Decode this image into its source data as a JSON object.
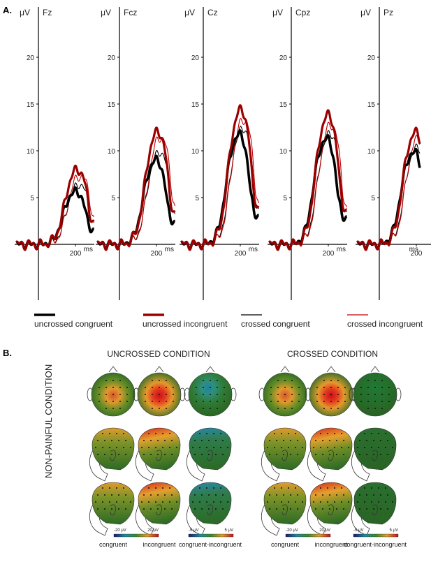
{
  "panel_a": {
    "label": "A.",
    "y_unit": "μV",
    "x_unit": "ms",
    "x_tick": "200",
    "y_ticks": [
      "5",
      "10",
      "15",
      "20"
    ],
    "channels": [
      "Fz",
      "Fcz",
      "Cz",
      "Cpz",
      "Pz"
    ]
  },
  "legend": [
    {
      "label": "uncrossed congruent",
      "color": "#000000",
      "style": "thick"
    },
    {
      "label": "uncrossed incongruent",
      "color": "#9b0000",
      "style": "thick"
    },
    {
      "label": "crossed congruent",
      "color": "#000000",
      "style": "thin"
    },
    {
      "label": "crossed incongruent",
      "color": "#c00000",
      "style": "thin"
    }
  ],
  "panel_b": {
    "label": "B.",
    "row_label": "NON-PAINFUL CONDITION",
    "groups": [
      "UNCROSSED CONDITION",
      "CROSSED CONDITION"
    ],
    "columns": [
      "congruent",
      "incongruent",
      "congruent-incongruent"
    ],
    "views": [
      "top",
      "side",
      "side-back"
    ],
    "colorbars": [
      {
        "min": "-20 μV",
        "max": "20 μV"
      },
      {
        "min": "-5 μV",
        "max": "5 μV"
      }
    ]
  },
  "chart_data": [
    {
      "type": "line",
      "title": "Fz",
      "xlabel": "ms",
      "ylabel": "μV",
      "ylim": [
        -5,
        25
      ],
      "x": [
        -100,
        -50,
        0,
        50,
        100,
        150,
        200,
        250,
        300,
        350,
        400
      ],
      "peak_values": {
        "uncrossed congruent": 6,
        "uncrossed incongruent": 8.5,
        "crossed congruent": 6.8,
        "crossed incongruent": 7.8
      }
    },
    {
      "type": "line",
      "title": "Fcz",
      "xlabel": "ms",
      "ylabel": "μV",
      "ylim": [
        -5,
        25
      ],
      "peak_values": {
        "uncrossed congruent": 9.6,
        "uncrossed incongruent": 12.8,
        "crossed congruent": 10.5,
        "crossed incongruent": 12.2
      }
    },
    {
      "type": "line",
      "title": "Cz",
      "xlabel": "ms",
      "ylabel": "μV",
      "ylim": [
        -5,
        25
      ],
      "peak_values": {
        "uncrossed congruent": 12.5,
        "uncrossed incongruent": 15.3,
        "crossed congruent": 13.2,
        "crossed incongruent": 14.2
      }
    },
    {
      "type": "line",
      "title": "Cpz",
      "xlabel": "ms",
      "ylabel": "μV",
      "ylim": [
        -5,
        25
      ],
      "peak_values": {
        "uncrossed congruent": 12,
        "uncrossed incongruent": 14.7,
        "crossed congruent": 12.6,
        "crossed incongruent": 13.6
      }
    },
    {
      "type": "line",
      "title": "Pz",
      "xlabel": "ms",
      "ylabel": "μV",
      "ylim": [
        -5,
        25
      ],
      "peak_values": {
        "uncrossed congruent": 10.5,
        "uncrossed incongruent": 12.7,
        "crossed congruent": 11,
        "crossed incongruent": 12
      }
    }
  ]
}
